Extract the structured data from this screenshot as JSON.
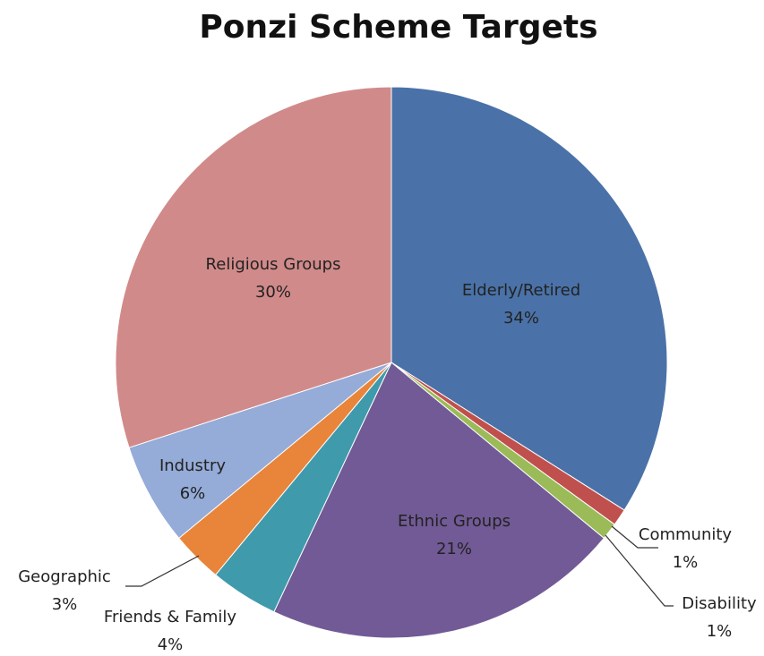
{
  "chart_data": {
    "type": "pie",
    "title": "Ponzi Scheme Targets",
    "categories": [
      "Elderly/Retired",
      "Community",
      "Disability",
      "Ethnic Groups",
      "Friends & Family",
      "Geographic",
      "Industry",
      "Religious Groups"
    ],
    "values": [
      34,
      1,
      1,
      21,
      4,
      3,
      6,
      30
    ],
    "value_labels": [
      "34%",
      "1%",
      "1%",
      "21%",
      "4%",
      "3%",
      "6%",
      "30%"
    ],
    "colors": [
      "#4a72a8",
      "#c0504d",
      "#9bbb59",
      "#725a96",
      "#3f9aac",
      "#e8853a",
      "#95abd8",
      "#d18a8a"
    ]
  }
}
